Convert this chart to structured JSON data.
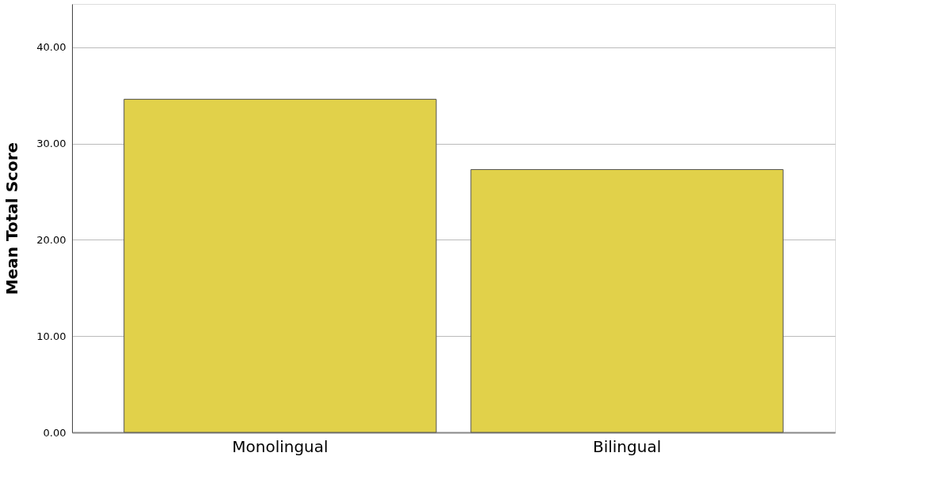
{
  "chart_data": {
    "type": "bar",
    "ylabel": "Mean Total Score",
    "categories": [
      "Monolingual",
      "Bilingual"
    ],
    "values": [
      34.6,
      27.3
    ],
    "color": "#e1d14a",
    "ylim": [
      0,
      44.5
    ],
    "yticks": [
      {
        "value": 0,
        "label": "0.00"
      },
      {
        "value": 10,
        "label": "10.00"
      },
      {
        "value": 20,
        "label": "20.00"
      },
      {
        "value": 30,
        "label": "30.00"
      },
      {
        "value": 40,
        "label": "40.00"
      }
    ],
    "grid": "y"
  }
}
